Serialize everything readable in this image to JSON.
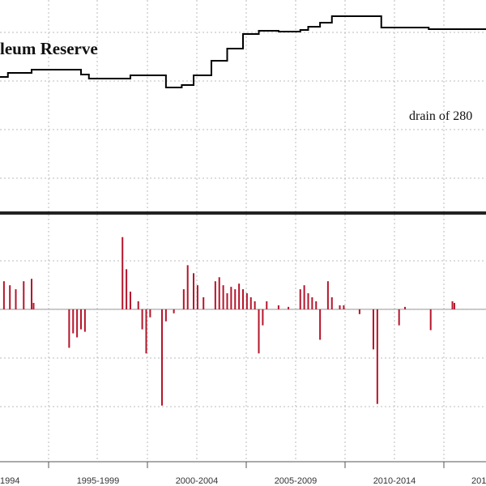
{
  "chart_data": [
    {
      "type": "line",
      "title": "leum Reserve",
      "annotation": "drain of 280",
      "x": [
        1992.5,
        1992.9,
        1994.1,
        1996.4,
        1996.6,
        1997.0,
        1998.7,
        1999.1,
        2000.5,
        2000.9,
        2001.7,
        2002.3,
        2003.2,
        2004.0,
        2004.8,
        2005.6,
        2006.6,
        2007.7,
        2008.1,
        2008.7,
        2009.3,
        2011.6,
        2011.8,
        2014.2,
        2017.1
      ],
      "values": [
        167,
        172,
        176,
        176,
        170,
        165,
        165,
        169,
        169,
        154,
        157,
        169,
        187,
        202,
        220,
        224,
        223,
        225,
        229,
        234,
        242,
        242,
        228,
        226,
        227
      ],
      "color": "#000000",
      "xlim": [
        1992.5,
        2017.1
      ],
      "ylim": [
        0,
        262
      ],
      "grid": true
    },
    {
      "type": "bar",
      "x": [
        1992.7,
        1993.0,
        1993.3,
        1993.7,
        1994.1,
        1994.2,
        1996.0,
        1996.2,
        1996.4,
        1996.6,
        1996.8,
        1998.7,
        1998.9,
        1999.1,
        1999.5,
        1999.7,
        1999.9,
        2000.1,
        2000.7,
        2000.9,
        2001.3,
        2001.8,
        2002.0,
        2002.3,
        2002.5,
        2002.8,
        2003.4,
        2003.6,
        2003.8,
        2004.0,
        2004.2,
        2004.4,
        2004.6,
        2004.8,
        2005.0,
        2005.2,
        2005.4,
        2005.6,
        2005.8,
        2006.0,
        2006.6,
        2007.1,
        2007.7,
        2007.9,
        2008.1,
        2008.3,
        2008.5,
        2008.7,
        2009.1,
        2009.3,
        2009.7,
        2009.9,
        2010.7,
        2011.4,
        2011.6,
        2012.7,
        2013.0,
        2014.3,
        2015.4,
        2015.5
      ],
      "values": [
        35,
        30,
        25,
        35,
        38,
        8,
        -48,
        -30,
        -35,
        -25,
        -28,
        90,
        50,
        22,
        10,
        -25,
        -55,
        -10,
        -120,
        -15,
        -5,
        25,
        55,
        45,
        30,
        15,
        35,
        40,
        30,
        20,
        28,
        25,
        32,
        25,
        20,
        15,
        10,
        -55,
        -20,
        10,
        5,
        3,
        25,
        30,
        20,
        15,
        10,
        -38,
        35,
        15,
        5,
        5,
        -6,
        -50,
        -118,
        -20,
        3,
        -26,
        10,
        8
      ],
      "color": "#b5152b",
      "xlim": [
        1992.5,
        2017.1
      ],
      "ylim": [
        -190,
        118
      ],
      "grid": true,
      "categories": [
        "1994",
        "1995-1999",
        "2000-2004",
        "2005-2009",
        "2010-2014",
        "201"
      ]
    }
  ]
}
